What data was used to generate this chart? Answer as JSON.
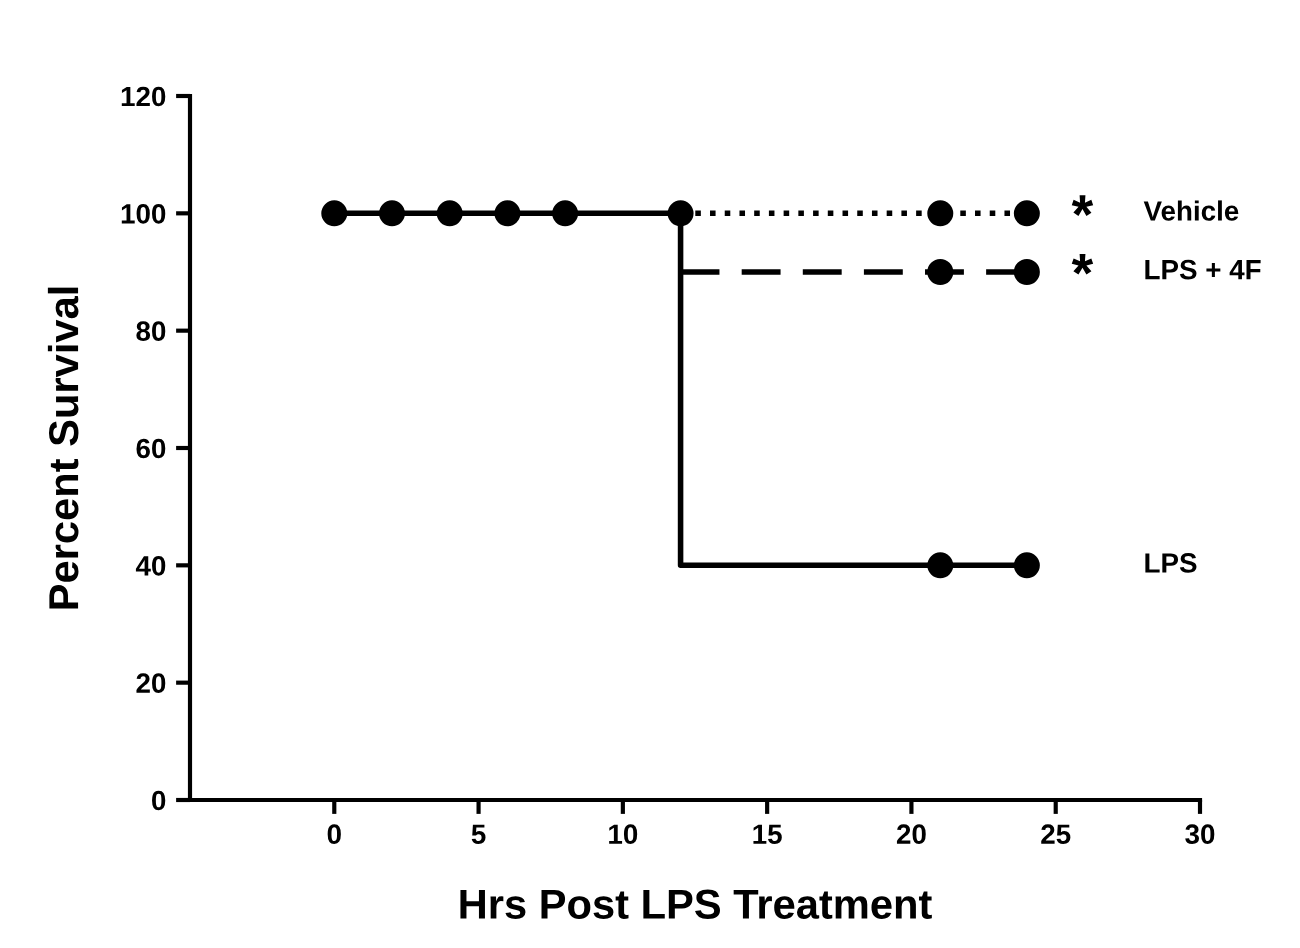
{
  "chart_data": {
    "type": "line",
    "xlabel": "Hrs Post LPS Treatment",
    "ylabel": "Percent Survival",
    "xlim": [
      -5,
      30
    ],
    "xticks": [
      0,
      5,
      10,
      15,
      20,
      25,
      30
    ],
    "ylim": [
      0,
      120
    ],
    "yticks": [
      0,
      20,
      40,
      60,
      80,
      100,
      120
    ],
    "grid": false,
    "legend": false,
    "series": [
      {
        "name": "Vehicle",
        "color": "#000000",
        "line_style": "dotted",
        "marker": "none",
        "x": [
          12,
          24
        ],
        "values": [
          100,
          100
        ]
      },
      {
        "name": "LPS + 4F",
        "color": "#000000",
        "line_style": "dashed",
        "marker": "none",
        "x": [
          12,
          24
        ],
        "values": [
          90,
          90
        ]
      },
      {
        "name": "LPS",
        "color": "#000000",
        "line_style": "solid",
        "marker": "none",
        "x": [
          0,
          12,
          12,
          24
        ],
        "values": [
          100,
          100,
          40,
          40
        ]
      },
      {
        "type": "scatter",
        "color": "#000000",
        "marker": "circle",
        "x": [
          0,
          2,
          4,
          6,
          8,
          12,
          21,
          24,
          21,
          24,
          21,
          24
        ],
        "values": [
          100,
          100,
          100,
          100,
          100,
          100,
          100,
          100,
          90,
          90,
          40,
          40
        ]
      }
    ],
    "annotations": [
      {
        "text": "*",
        "x": 24,
        "y": 100
      },
      {
        "text": "*",
        "x": 24,
        "y": 90
      }
    ]
  }
}
